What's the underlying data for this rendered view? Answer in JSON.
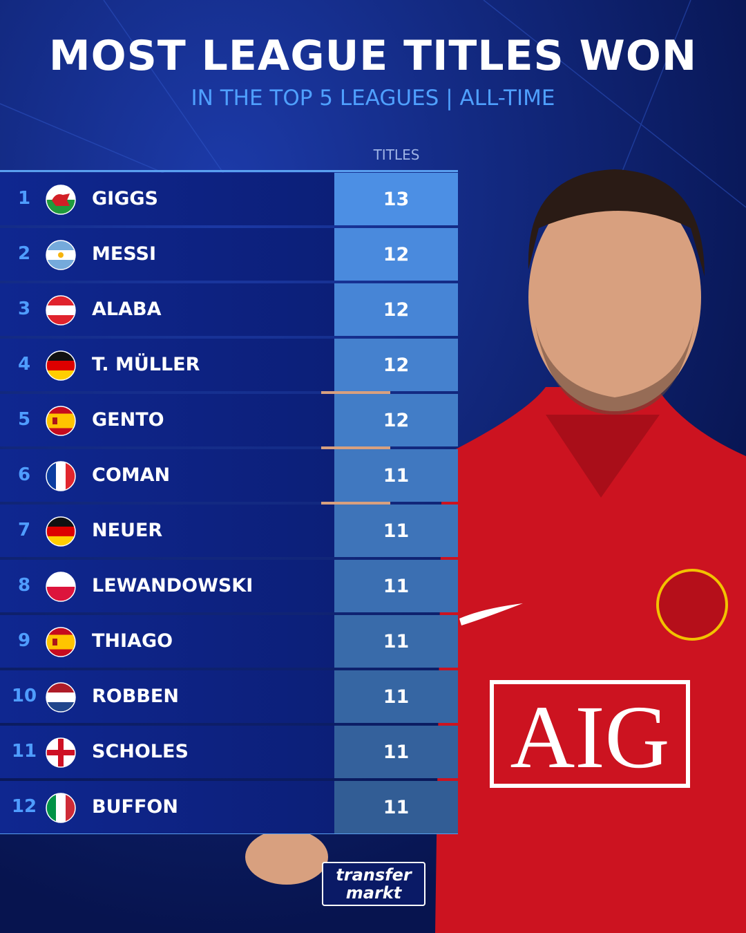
{
  "header": {
    "title": "MOST LEAGUE TITLES WON",
    "subtitle": "IN THE TOP 5 LEAGUES | ALL-TIME"
  },
  "table": {
    "column_header": "TITLES",
    "rows": [
      [
        "1",
        "GIGGS",
        "13"
      ],
      [
        "2",
        "MESSI",
        "12"
      ],
      [
        "3",
        "ALABA",
        "12"
      ],
      [
        "4",
        "T. MÜLLER",
        "12"
      ],
      [
        "5",
        "GENTO",
        "12"
      ],
      [
        "6",
        "COMAN",
        "11"
      ],
      [
        "7",
        "NEUER",
        "11"
      ],
      [
        "8",
        "LEWANDOWSKI",
        "11"
      ],
      [
        "9",
        "THIAGO",
        "11"
      ],
      [
        "10",
        "ROBBEN",
        "11"
      ],
      [
        "11",
        "SCHOLES",
        "11"
      ],
      [
        "12",
        "BUFFON",
        "11"
      ]
    ]
  },
  "photo": {
    "sponsor": "AIG"
  },
  "logo": {
    "lines": [
      "transfer",
      "markt"
    ]
  }
}
